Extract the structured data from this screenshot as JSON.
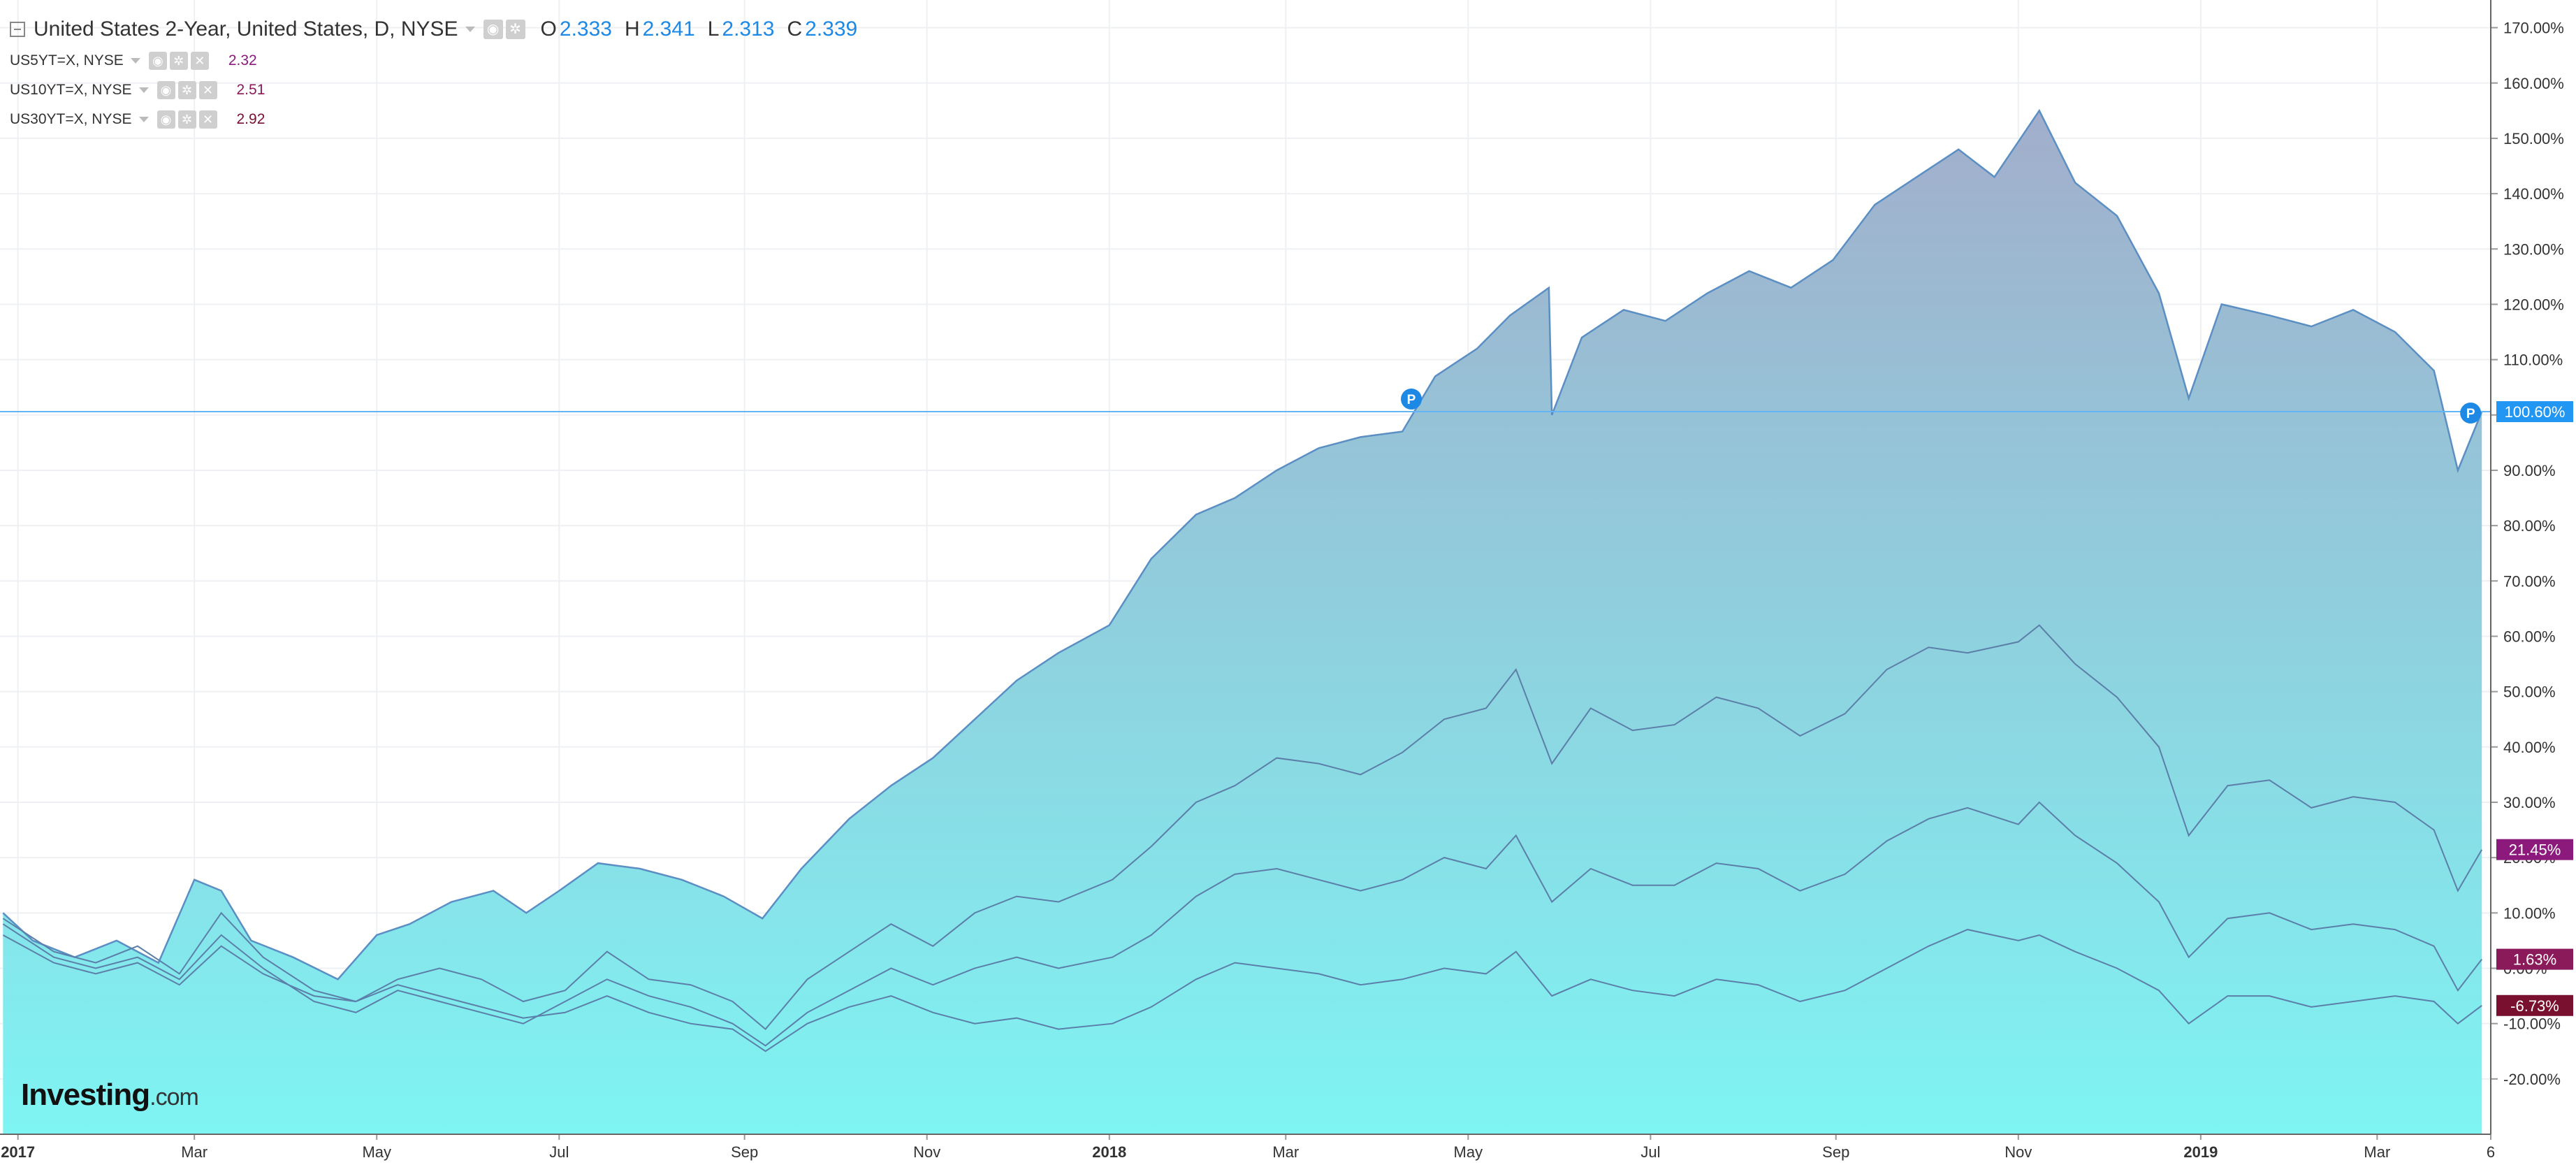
{
  "legend": {
    "main": {
      "title": "United States 2-Year, United States, D, NYSE",
      "o_label": "O",
      "o": "2.333",
      "h_label": "H",
      "h": "2.341",
      "l_label": "L",
      "l": "2.313",
      "c_label": "C",
      "c": "2.339"
    },
    "overlays": [
      {
        "label": "US5YT=X, NYSE",
        "value": "2.32",
        "color": "#8b1a7c"
      },
      {
        "label": "US10YT=X, NYSE",
        "value": "2.51",
        "color": "#8b1a5a"
      },
      {
        "label": "US30YT=X, NYSE",
        "value": "2.92",
        "color": "#7a1030"
      }
    ]
  },
  "watermark": {
    "brand": "Investing",
    "suffix": ".com"
  },
  "chart_data": {
    "type": "area",
    "x_range": [
      "2016-12-26",
      "2019-04-08"
    ],
    "y_range": [
      -30,
      175
    ],
    "y_unit": "%",
    "y_ticks": [
      170,
      160,
      150,
      140,
      130,
      120,
      110,
      100,
      90,
      80,
      70,
      60,
      50,
      40,
      30,
      20,
      10,
      0,
      -10,
      -20
    ],
    "x_ticks": [
      {
        "date": "2017-01-01",
        "label": "2017",
        "bold": true
      },
      {
        "date": "2017-03-01",
        "label": "Mar"
      },
      {
        "date": "2017-05-01",
        "label": "May"
      },
      {
        "date": "2017-07-01",
        "label": "Jul"
      },
      {
        "date": "2017-09-01",
        "label": "Sep"
      },
      {
        "date": "2017-11-01",
        "label": "Nov"
      },
      {
        "date": "2018-01-01",
        "label": "2018",
        "bold": true
      },
      {
        "date": "2018-03-01",
        "label": "Mar"
      },
      {
        "date": "2018-05-01",
        "label": "May"
      },
      {
        "date": "2018-07-01",
        "label": "Jul"
      },
      {
        "date": "2018-09-01",
        "label": "Sep"
      },
      {
        "date": "2018-11-01",
        "label": "Nov"
      },
      {
        "date": "2019-01-01",
        "label": "2019",
        "bold": true
      },
      {
        "date": "2019-03-01",
        "label": "Mar"
      },
      {
        "date": "2019-04-08",
        "label": "6"
      }
    ],
    "reference_line": {
      "value": 100.6,
      "label": "100.60%",
      "marker": "P"
    },
    "series": [
      {
        "name": "United States 2-Year",
        "fill": "area",
        "last_label": "100.60%",
        "label_color": "#2196f3",
        "points": [
          [
            "2016-12-27",
            10
          ],
          [
            "2017-01-06",
            5
          ],
          [
            "2017-01-20",
            2
          ],
          [
            "2017-02-03",
            5
          ],
          [
            "2017-02-17",
            1
          ],
          [
            "2017-03-01",
            16
          ],
          [
            "2017-03-10",
            14
          ],
          [
            "2017-03-20",
            5
          ],
          [
            "2017-04-03",
            2
          ],
          [
            "2017-04-18",
            -2
          ],
          [
            "2017-05-01",
            6
          ],
          [
            "2017-05-12",
            8
          ],
          [
            "2017-05-26",
            12
          ],
          [
            "2017-06-09",
            14
          ],
          [
            "2017-06-20",
            10
          ],
          [
            "2017-07-01",
            14
          ],
          [
            "2017-07-14",
            19
          ],
          [
            "2017-07-28",
            18
          ],
          [
            "2017-08-11",
            16
          ],
          [
            "2017-08-25",
            13
          ],
          [
            "2017-09-07",
            9
          ],
          [
            "2017-09-20",
            18
          ],
          [
            "2017-10-06",
            27
          ],
          [
            "2017-10-20",
            33
          ],
          [
            "2017-11-03",
            38
          ],
          [
            "2017-11-17",
            45
          ],
          [
            "2017-12-01",
            52
          ],
          [
            "2017-12-15",
            57
          ],
          [
            "2018-01-01",
            62
          ],
          [
            "2018-01-15",
            74
          ],
          [
            "2018-01-30",
            82
          ],
          [
            "2018-02-12",
            85
          ],
          [
            "2018-02-26",
            90
          ],
          [
            "2018-03-12",
            94
          ],
          [
            "2018-03-26",
            96
          ],
          [
            "2018-04-09",
            97
          ],
          [
            "2018-04-20",
            107
          ],
          [
            "2018-05-04",
            112
          ],
          [
            "2018-05-15",
            118
          ],
          [
            "2018-05-28",
            123
          ],
          [
            "2018-05-29",
            100
          ],
          [
            "2018-06-08",
            114
          ],
          [
            "2018-06-22",
            119
          ],
          [
            "2018-07-06",
            117
          ],
          [
            "2018-07-20",
            122
          ],
          [
            "2018-08-03",
            126
          ],
          [
            "2018-08-17",
            123
          ],
          [
            "2018-08-31",
            128
          ],
          [
            "2018-09-14",
            138
          ],
          [
            "2018-09-28",
            143
          ],
          [
            "2018-10-12",
            148
          ],
          [
            "2018-10-24",
            143
          ],
          [
            "2018-11-08",
            155
          ],
          [
            "2018-11-20",
            142
          ],
          [
            "2018-12-04",
            136
          ],
          [
            "2018-12-18",
            122
          ],
          [
            "2018-12-28",
            103
          ],
          [
            "2019-01-08",
            120
          ],
          [
            "2019-01-24",
            118
          ],
          [
            "2019-02-07",
            116
          ],
          [
            "2019-02-21",
            119
          ],
          [
            "2019-03-07",
            115
          ],
          [
            "2019-03-20",
            108
          ],
          [
            "2019-03-28",
            90
          ],
          [
            "2019-04-05",
            100.6
          ]
        ]
      },
      {
        "name": "US5YT=X",
        "fill": "line",
        "last_label": "21.45%",
        "label_color": "#8b1a7c",
        "points": [
          [
            "2016-12-27",
            9
          ],
          [
            "2017-01-13",
            3
          ],
          [
            "2017-01-27",
            1
          ],
          [
            "2017-02-10",
            4
          ],
          [
            "2017-02-24",
            -1
          ],
          [
            "2017-03-10",
            10
          ],
          [
            "2017-03-24",
            2
          ],
          [
            "2017-04-10",
            -4
          ],
          [
            "2017-04-24",
            -6
          ],
          [
            "2017-05-08",
            -2
          ],
          [
            "2017-05-22",
            0
          ],
          [
            "2017-06-05",
            -2
          ],
          [
            "2017-06-19",
            -6
          ],
          [
            "2017-07-03",
            -4
          ],
          [
            "2017-07-17",
            3
          ],
          [
            "2017-07-31",
            -2
          ],
          [
            "2017-08-14",
            -3
          ],
          [
            "2017-08-28",
            -6
          ],
          [
            "2017-09-08",
            -11
          ],
          [
            "2017-09-22",
            -2
          ],
          [
            "2017-10-06",
            3
          ],
          [
            "2017-10-20",
            8
          ],
          [
            "2017-11-03",
            4
          ],
          [
            "2017-11-17",
            10
          ],
          [
            "2017-12-01",
            13
          ],
          [
            "2017-12-15",
            12
          ],
          [
            "2018-01-02",
            16
          ],
          [
            "2018-01-15",
            22
          ],
          [
            "2018-01-30",
            30
          ],
          [
            "2018-02-12",
            33
          ],
          [
            "2018-02-26",
            38
          ],
          [
            "2018-03-12",
            37
          ],
          [
            "2018-03-26",
            35
          ],
          [
            "2018-04-09",
            39
          ],
          [
            "2018-04-23",
            45
          ],
          [
            "2018-05-07",
            47
          ],
          [
            "2018-05-17",
            54
          ],
          [
            "2018-05-29",
            37
          ],
          [
            "2018-06-11",
            47
          ],
          [
            "2018-06-25",
            43
          ],
          [
            "2018-07-09",
            44
          ],
          [
            "2018-07-23",
            49
          ],
          [
            "2018-08-06",
            47
          ],
          [
            "2018-08-20",
            42
          ],
          [
            "2018-09-04",
            46
          ],
          [
            "2018-09-18",
            54
          ],
          [
            "2018-10-02",
            58
          ],
          [
            "2018-10-15",
            57
          ],
          [
            "2018-11-01",
            59
          ],
          [
            "2018-11-08",
            62
          ],
          [
            "2018-11-20",
            55
          ],
          [
            "2018-12-04",
            49
          ],
          [
            "2018-12-18",
            40
          ],
          [
            "2018-12-28",
            24
          ],
          [
            "2019-01-10",
            33
          ],
          [
            "2019-01-24",
            34
          ],
          [
            "2019-02-07",
            29
          ],
          [
            "2019-02-21",
            31
          ],
          [
            "2019-03-07",
            30
          ],
          [
            "2019-03-20",
            25
          ],
          [
            "2019-03-28",
            14
          ],
          [
            "2019-04-05",
            21.45
          ]
        ]
      },
      {
        "name": "US10YT=X",
        "fill": "line",
        "last_label": "1.63%",
        "label_color": "#8b1a5a",
        "points": [
          [
            "2016-12-27",
            8
          ],
          [
            "2017-01-13",
            2
          ],
          [
            "2017-01-27",
            0
          ],
          [
            "2017-02-10",
            2
          ],
          [
            "2017-02-24",
            -2
          ],
          [
            "2017-03-10",
            6
          ],
          [
            "2017-03-24",
            0
          ],
          [
            "2017-04-10",
            -6
          ],
          [
            "2017-04-24",
            -8
          ],
          [
            "2017-05-08",
            -4
          ],
          [
            "2017-05-22",
            -6
          ],
          [
            "2017-06-05",
            -8
          ],
          [
            "2017-06-19",
            -10
          ],
          [
            "2017-07-03",
            -6
          ],
          [
            "2017-07-17",
            -2
          ],
          [
            "2017-07-31",
            -5
          ],
          [
            "2017-08-14",
            -7
          ],
          [
            "2017-08-28",
            -10
          ],
          [
            "2017-09-08",
            -14
          ],
          [
            "2017-09-22",
            -8
          ],
          [
            "2017-10-06",
            -4
          ],
          [
            "2017-10-20",
            0
          ],
          [
            "2017-11-03",
            -3
          ],
          [
            "2017-11-17",
            0
          ],
          [
            "2017-12-01",
            2
          ],
          [
            "2017-12-15",
            0
          ],
          [
            "2018-01-02",
            2
          ],
          [
            "2018-01-15",
            6
          ],
          [
            "2018-01-30",
            13
          ],
          [
            "2018-02-12",
            17
          ],
          [
            "2018-02-26",
            18
          ],
          [
            "2018-03-12",
            16
          ],
          [
            "2018-03-26",
            14
          ],
          [
            "2018-04-09",
            16
          ],
          [
            "2018-04-23",
            20
          ],
          [
            "2018-05-07",
            18
          ],
          [
            "2018-05-17",
            24
          ],
          [
            "2018-05-29",
            12
          ],
          [
            "2018-06-11",
            18
          ],
          [
            "2018-06-25",
            15
          ],
          [
            "2018-07-09",
            15
          ],
          [
            "2018-07-23",
            19
          ],
          [
            "2018-08-06",
            18
          ],
          [
            "2018-08-20",
            14
          ],
          [
            "2018-09-04",
            17
          ],
          [
            "2018-09-18",
            23
          ],
          [
            "2018-10-02",
            27
          ],
          [
            "2018-10-15",
            29
          ],
          [
            "2018-11-01",
            26
          ],
          [
            "2018-11-08",
            30
          ],
          [
            "2018-11-20",
            24
          ],
          [
            "2018-12-04",
            19
          ],
          [
            "2018-12-18",
            12
          ],
          [
            "2018-12-28",
            2
          ],
          [
            "2019-01-10",
            9
          ],
          [
            "2019-01-24",
            10
          ],
          [
            "2019-02-07",
            7
          ],
          [
            "2019-02-21",
            8
          ],
          [
            "2019-03-07",
            7
          ],
          [
            "2019-03-20",
            4
          ],
          [
            "2019-03-28",
            -4
          ],
          [
            "2019-04-05",
            1.63
          ]
        ]
      },
      {
        "name": "US30YT=X",
        "fill": "line",
        "last_label": "-6.73%",
        "label_color": "#7a1030",
        "points": [
          [
            "2016-12-27",
            6
          ],
          [
            "2017-01-13",
            1
          ],
          [
            "2017-01-27",
            -1
          ],
          [
            "2017-02-10",
            1
          ],
          [
            "2017-02-24",
            -3
          ],
          [
            "2017-03-10",
            4
          ],
          [
            "2017-03-24",
            -1
          ],
          [
            "2017-04-10",
            -5
          ],
          [
            "2017-04-24",
            -6
          ],
          [
            "2017-05-08",
            -3
          ],
          [
            "2017-05-22",
            -5
          ],
          [
            "2017-06-05",
            -7
          ],
          [
            "2017-06-19",
            -9
          ],
          [
            "2017-07-03",
            -8
          ],
          [
            "2017-07-17",
            -5
          ],
          [
            "2017-07-31",
            -8
          ],
          [
            "2017-08-14",
            -10
          ],
          [
            "2017-08-28",
            -11
          ],
          [
            "2017-09-08",
            -15
          ],
          [
            "2017-09-22",
            -10
          ],
          [
            "2017-10-06",
            -7
          ],
          [
            "2017-10-20",
            -5
          ],
          [
            "2017-11-03",
            -8
          ],
          [
            "2017-11-17",
            -10
          ],
          [
            "2017-12-01",
            -9
          ],
          [
            "2017-12-15",
            -11
          ],
          [
            "2018-01-02",
            -10
          ],
          [
            "2018-01-15",
            -7
          ],
          [
            "2018-01-30",
            -2
          ],
          [
            "2018-02-12",
            1
          ],
          [
            "2018-02-26",
            0
          ],
          [
            "2018-03-12",
            -1
          ],
          [
            "2018-03-26",
            -3
          ],
          [
            "2018-04-09",
            -2
          ],
          [
            "2018-04-23",
            0
          ],
          [
            "2018-05-07",
            -1
          ],
          [
            "2018-05-17",
            3
          ],
          [
            "2018-05-29",
            -5
          ],
          [
            "2018-06-11",
            -2
          ],
          [
            "2018-06-25",
            -4
          ],
          [
            "2018-07-09",
            -5
          ],
          [
            "2018-07-23",
            -2
          ],
          [
            "2018-08-06",
            -3
          ],
          [
            "2018-08-20",
            -6
          ],
          [
            "2018-09-04",
            -4
          ],
          [
            "2018-09-18",
            0
          ],
          [
            "2018-10-02",
            4
          ],
          [
            "2018-10-15",
            7
          ],
          [
            "2018-11-01",
            5
          ],
          [
            "2018-11-08",
            6
          ],
          [
            "2018-11-20",
            3
          ],
          [
            "2018-12-04",
            0
          ],
          [
            "2018-12-18",
            -4
          ],
          [
            "2018-12-28",
            -10
          ],
          [
            "2019-01-10",
            -5
          ],
          [
            "2019-01-24",
            -5
          ],
          [
            "2019-02-07",
            -7
          ],
          [
            "2019-02-21",
            -6
          ],
          [
            "2019-03-07",
            -5
          ],
          [
            "2019-03-20",
            -6
          ],
          [
            "2019-03-28",
            -10
          ],
          [
            "2019-04-05",
            -6.73
          ]
        ]
      }
    ]
  }
}
